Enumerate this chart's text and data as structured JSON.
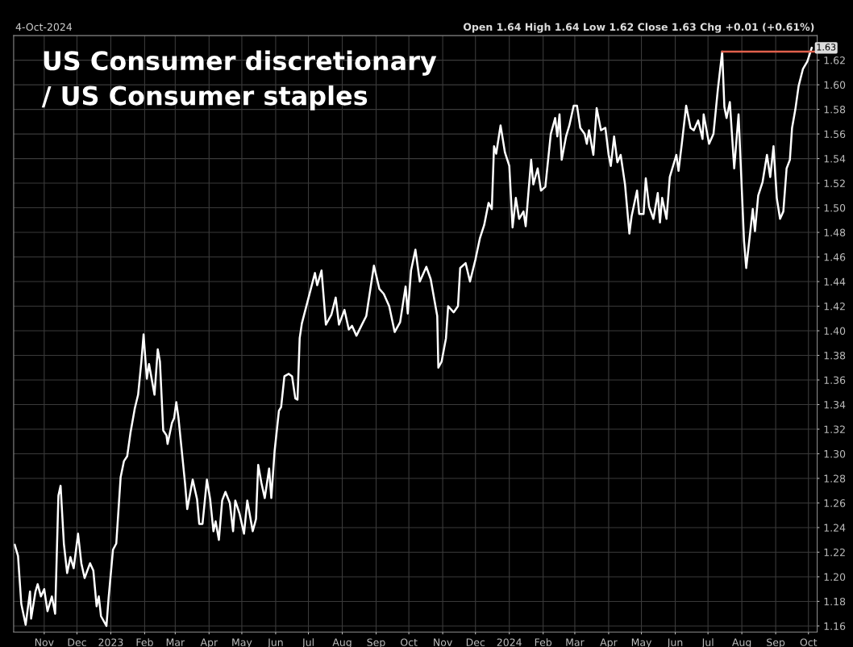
{
  "chart_data": {
    "type": "line",
    "title": "US Consumer discretionary\n/ US Consumer staples",
    "subtitle": "4-Oct-2024",
    "annotations": [
      "Open 1.64 High 1.64 Low 1.62 Close 1.63 Chg +0.01 (+0.61%)",
      {
        "text": "1.63",
        "x": "2024-10-04",
        "y": 1.63
      }
    ],
    "grid": true,
    "marker": "none",
    "line_style": "solid",
    "xlim": [
      "2022-10-04",
      "2024-10-09"
    ],
    "ylim": [
      1.155,
      1.64
    ],
    "xticks": [
      {
        "value": "2022-11-01",
        "label": "Nov"
      },
      {
        "value": "2022-12-01",
        "label": "Dec"
      },
      {
        "value": "2023-01-01",
        "label": "2023"
      },
      {
        "value": "2023-02-01",
        "label": "Feb"
      },
      {
        "value": "2023-03-01",
        "label": "Mar"
      },
      {
        "value": "2023-04-01",
        "label": "Apr"
      },
      {
        "value": "2023-05-01",
        "label": "May"
      },
      {
        "value": "2023-06-01",
        "label": "Jun"
      },
      {
        "value": "2023-07-01",
        "label": "Jul"
      },
      {
        "value": "2023-08-01",
        "label": "Aug"
      },
      {
        "value": "2023-09-01",
        "label": "Sep"
      },
      {
        "value": "2023-10-01",
        "label": "Oct"
      },
      {
        "value": "2023-11-01",
        "label": "Nov"
      },
      {
        "value": "2023-12-01",
        "label": "Dec"
      },
      {
        "value": "2024-01-01",
        "label": "2024"
      },
      {
        "value": "2024-02-01",
        "label": "Feb"
      },
      {
        "value": "2024-03-01",
        "label": "Mar"
      },
      {
        "value": "2024-04-01",
        "label": "Apr"
      },
      {
        "value": "2024-05-01",
        "label": "May"
      },
      {
        "value": "2024-06-01",
        "label": "Jun"
      },
      {
        "value": "2024-07-01",
        "label": "Jul"
      },
      {
        "value": "2024-08-01",
        "label": "Aug"
      },
      {
        "value": "2024-09-01",
        "label": "Sep"
      },
      {
        "value": "2024-10-01",
        "label": "Oct"
      }
    ],
    "yticks": [
      1.16,
      1.18,
      {
        "value": 1.2,
        "label": "1.20"
      },
      1.22,
      1.24,
      1.26,
      1.28,
      {
        "value": 1.3,
        "label": "1.30"
      },
      1.32,
      1.34,
      1.36,
      1.38,
      {
        "value": 1.4,
        "label": "1.40"
      },
      1.42,
      1.44,
      1.46,
      1.48,
      {
        "value": 1.5,
        "label": "1.50"
      },
      1.52,
      1.54,
      1.56,
      1.58,
      {
        "value": 1.6,
        "label": "1.60"
      },
      1.62
    ],
    "series": [
      {
        "color": "#ffffff",
        "x": [
          "2022-10-05",
          "2022-10-08",
          "2022-10-11",
          "2022-10-15",
          "2022-10-19",
          "2022-10-20",
          "2022-10-24",
          "2022-10-26",
          "2022-10-29",
          "2022-11-01",
          "2022-11-04",
          "2022-11-08",
          "2022-11-11",
          "2022-11-14",
          "2022-11-16",
          "2022-11-19",
          "2022-11-22",
          "2022-11-25",
          "2022-11-28",
          "2022-12-02",
          "2022-12-05",
          "2022-12-08",
          "2022-12-13",
          "2022-12-16",
          "2022-12-19",
          "2022-12-21",
          "2022-12-23",
          "2022-12-28",
          "2022-12-30",
          "2023-01-03",
          "2023-01-06",
          "2023-01-10",
          "2023-01-13",
          "2023-01-16",
          "2023-01-19",
          "2023-01-23",
          "2023-01-26",
          "2023-01-29",
          "2023-01-31",
          "2023-02-03",
          "2023-02-05",
          "2023-02-10",
          "2023-02-13",
          "2023-02-15",
          "2023-02-18",
          "2023-02-21",
          "2023-02-22",
          "2023-02-26",
          "2023-02-28",
          "2023-03-02",
          "2023-03-04",
          "2023-03-10",
          "2023-03-12",
          "2023-03-17",
          "2023-03-21",
          "2023-03-23",
          "2023-03-26",
          "2023-03-30",
          "2023-04-02",
          "2023-04-05",
          "2023-04-07",
          "2023-04-10",
          "2023-04-13",
          "2023-04-16",
          "2023-04-20",
          "2023-04-23",
          "2023-04-25",
          "2023-04-29",
          "2023-05-03",
          "2023-05-06",
          "2023-05-09",
          "2023-05-11",
          "2023-05-14",
          "2023-05-16",
          "2023-05-19",
          "2023-05-22",
          "2023-05-26",
          "2023-05-28",
          "2023-05-31",
          "2023-06-04",
          "2023-06-06",
          "2023-06-09",
          "2023-06-13",
          "2023-06-16",
          "2023-06-19",
          "2023-06-21",
          "2023-06-23",
          "2023-06-25",
          "2023-07-07",
          "2023-07-09",
          "2023-07-13",
          "2023-07-17",
          "2023-07-22",
          "2023-07-26",
          "2023-07-29",
          "2023-08-03",
          "2023-08-07",
          "2023-08-10",
          "2023-08-14",
          "2023-08-19",
          "2023-08-23",
          "2023-08-30",
          "2023-09-04",
          "2023-09-08",
          "2023-09-13",
          "2023-09-18",
          "2023-09-23",
          "2023-09-28",
          "2023-09-30",
          "2023-10-03",
          "2023-10-07",
          "2023-10-11",
          "2023-10-17",
          "2023-10-21",
          "2023-10-27",
          "2023-10-28",
          "2023-10-31",
          "2023-11-04",
          "2023-11-06",
          "2023-11-11",
          "2023-11-15",
          "2023-11-17",
          "2023-11-22",
          "2023-11-26",
          "2023-12-01",
          "2023-12-05",
          "2023-12-09",
          "2023-12-13",
          "2023-12-16",
          "2023-12-18",
          "2023-12-20",
          "2023-12-24",
          "2023-12-28",
          "2024-01-01",
          "2024-01-04",
          "2024-01-07",
          "2024-01-10",
          "2024-01-14",
          "2024-01-16",
          "2024-01-21",
          "2024-01-23",
          "2024-01-27",
          "2024-01-30",
          "2024-02-03",
          "2024-02-08",
          "2024-02-12",
          "2024-02-14",
          "2024-02-16",
          "2024-02-18",
          "2024-02-22",
          "2024-02-25",
          "2024-02-29",
          "2024-03-03",
          "2024-03-06",
          "2024-03-10",
          "2024-03-12",
          "2024-03-14",
          "2024-03-18",
          "2024-03-21",
          "2024-03-25",
          "2024-03-29",
          "2024-04-01",
          "2024-04-03",
          "2024-04-06",
          "2024-04-09",
          "2024-04-12",
          "2024-04-16",
          "2024-04-20",
          "2024-04-22",
          "2024-04-27",
          "2024-04-29",
          "2024-05-03",
          "2024-05-05",
          "2024-05-08",
          "2024-05-12",
          "2024-05-16",
          "2024-05-18",
          "2024-05-20",
          "2024-05-24",
          "2024-05-27",
          "2024-06-02",
          "2024-06-04",
          "2024-06-07",
          "2024-06-11",
          "2024-06-15",
          "2024-06-18",
          "2024-06-22",
          "2024-06-26",
          "2024-06-27",
          "2024-07-02",
          "2024-07-06",
          "2024-07-10",
          "2024-07-14",
          "2024-07-16",
          "2024-07-18",
          "2024-07-21",
          "2024-07-25",
          "2024-07-29",
          "2024-08-03",
          "2024-08-05",
          "2024-08-11",
          "2024-08-13",
          "2024-08-16",
          "2024-08-20",
          "2024-08-24",
          "2024-08-27",
          "2024-08-30",
          "2024-09-02",
          "2024-09-05",
          "2024-09-08",
          "2024-09-11",
          "2024-09-14",
          "2024-09-16",
          "2024-09-19",
          "2024-09-22",
          "2024-09-26",
          "2024-09-30",
          "2024-10-04"
        ],
        "values": [
          1.226,
          1.217,
          1.178,
          1.161,
          1.188,
          1.166,
          1.188,
          1.194,
          1.184,
          1.19,
          1.172,
          1.184,
          1.17,
          1.266,
          1.274,
          1.227,
          1.203,
          1.216,
          1.207,
          1.235,
          1.211,
          1.199,
          1.211,
          1.205,
          1.176,
          1.184,
          1.168,
          1.16,
          1.183,
          1.222,
          1.227,
          1.281,
          1.294,
          1.298,
          1.317,
          1.337,
          1.348,
          1.375,
          1.397,
          1.361,
          1.373,
          1.348,
          1.385,
          1.375,
          1.319,
          1.315,
          1.308,
          1.325,
          1.329,
          1.342,
          1.329,
          1.276,
          1.255,
          1.279,
          1.263,
          1.243,
          1.243,
          1.279,
          1.263,
          1.237,
          1.245,
          1.23,
          1.262,
          1.269,
          1.26,
          1.237,
          1.262,
          1.251,
          1.235,
          1.262,
          1.247,
          1.237,
          1.247,
          1.291,
          1.276,
          1.264,
          1.288,
          1.264,
          1.302,
          1.335,
          1.338,
          1.363,
          1.365,
          1.363,
          1.345,
          1.344,
          1.394,
          1.406,
          1.447,
          1.437,
          1.449,
          1.405,
          1.413,
          1.427,
          1.405,
          1.417,
          1.401,
          1.404,
          1.396,
          1.405,
          1.412,
          1.453,
          1.434,
          1.43,
          1.42,
          1.399,
          1.407,
          1.436,
          1.414,
          1.449,
          1.466,
          1.44,
          1.452,
          1.442,
          1.412,
          1.37,
          1.375,
          1.394,
          1.42,
          1.415,
          1.42,
          1.451,
          1.455,
          1.44,
          1.458,
          1.475,
          1.486,
          1.504,
          1.499,
          1.55,
          1.544,
          1.567,
          1.545,
          1.534,
          1.484,
          1.508,
          1.491,
          1.497,
          1.485,
          1.539,
          1.519,
          1.532,
          1.514,
          1.517,
          1.56,
          1.573,
          1.558,
          1.576,
          1.539,
          1.558,
          1.567,
          1.583,
          1.583,
          1.565,
          1.56,
          1.552,
          1.563,
          1.543,
          1.581,
          1.563,
          1.565,
          1.543,
          1.534,
          1.558,
          1.537,
          1.543,
          1.519,
          1.479,
          1.493,
          1.514,
          1.495,
          1.495,
          1.524,
          1.501,
          1.491,
          1.512,
          1.488,
          1.508,
          1.491,
          1.525,
          1.543,
          1.53,
          1.552,
          1.583,
          1.565,
          1.563,
          1.571,
          1.556,
          1.576,
          1.552,
          1.56,
          1.596,
          1.627,
          1.582,
          1.573,
          1.586,
          1.532,
          1.576,
          1.473,
          1.451,
          1.499,
          1.481,
          1.51,
          1.521,
          1.543,
          1.525,
          1.55,
          1.508,
          1.491,
          1.497,
          1.532,
          1.539,
          1.565,
          1.58,
          1.599,
          1.613,
          1.619,
          1.63
        ]
      },
      {
        "color": "#e0604c",
        "x": [
          "2024-07-14",
          "2024-10-08"
        ],
        "values": [
          1.627,
          1.627
        ]
      }
    ]
  }
}
